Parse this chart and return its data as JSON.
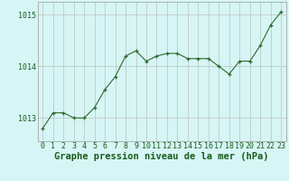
{
  "x": [
    0,
    1,
    2,
    3,
    4,
    5,
    6,
    7,
    8,
    9,
    10,
    11,
    12,
    13,
    14,
    15,
    16,
    17,
    18,
    19,
    20,
    21,
    22,
    23
  ],
  "y": [
    1012.8,
    1013.1,
    1013.1,
    1013.0,
    1013.0,
    1013.2,
    1013.55,
    1013.8,
    1014.2,
    1014.3,
    1014.1,
    1014.2,
    1014.25,
    1014.25,
    1014.15,
    1014.15,
    1014.15,
    1014.0,
    1013.85,
    1014.1,
    1014.1,
    1014.4,
    1014.8,
    1015.05
  ],
  "line_color": "#2d6a2d",
  "marker_color": "#2d6a2d",
  "bg_color": "#d6f5f5",
  "grid_color": "#c0c0c0",
  "border_color": "#999999",
  "xlabel": "Graphe pression niveau de la mer (hPa)",
  "xlabel_fontsize": 7.5,
  "tick_fontsize": 6.0,
  "yticks": [
    1013,
    1014,
    1015
  ],
  "ylim": [
    1012.55,
    1015.25
  ],
  "xlim": [
    -0.5,
    23.5
  ]
}
